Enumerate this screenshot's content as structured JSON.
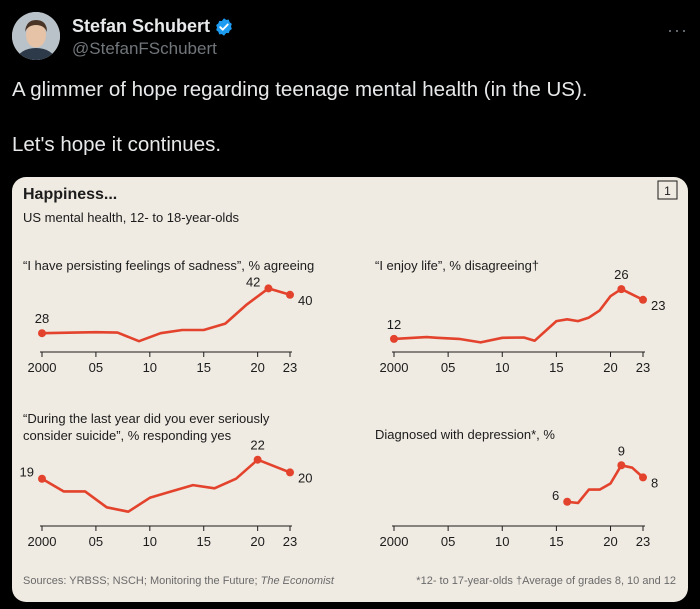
{
  "author": {
    "display_name": "Stefan Schubert",
    "handle": "@StefanFSchubert",
    "more_label": "···"
  },
  "tweet": {
    "line1": "A glimmer of hope regarding teenage mental health (in the US).",
    "line2": "Let's hope it continues."
  },
  "figure": {
    "title": "Happiness...",
    "subtitle": "US mental health, 12- to 18-year-olds",
    "number": "1",
    "sources": "Sources: YRBSS; NSCH; Monitoring the Future; ",
    "sources_italic": "The Economist",
    "footnote": "*12- to 17-year-olds †Average of grades 8, 10 and 12",
    "x_ticks": [
      "2000",
      "05",
      "10",
      "15",
      "20",
      "23"
    ],
    "x_tick_years": [
      2000,
      2005,
      2010,
      2015,
      2020,
      2023
    ],
    "line_color": "#e3432c"
  },
  "chart_data": [
    {
      "type": "line",
      "title": "“I have persisting feelings of sadness”, % agreeing",
      "xlim": [
        2000,
        2023
      ],
      "x": [
        2000,
        2003,
        2005,
        2007,
        2009,
        2011,
        2013,
        2015,
        2017,
        2019,
        2021,
        2023
      ],
      "values": [
        28,
        28.2,
        28.3,
        28.2,
        25.5,
        28,
        29,
        29,
        31,
        37,
        42,
        40
      ],
      "labels": [
        {
          "x": 2000,
          "text": "28",
          "pos": "above"
        },
        {
          "x": 2021,
          "text": "42",
          "pos": "left"
        },
        {
          "x": 2023,
          "text": "40",
          "pos": "right"
        }
      ]
    },
    {
      "type": "line",
      "title": "“I enjoy life”, % disagreeing†",
      "xlim": [
        2000,
        2023
      ],
      "x": [
        2000,
        2003,
        2004,
        2006,
        2008,
        2010,
        2012,
        2013,
        2015,
        2016,
        2017,
        2018,
        2019,
        2020,
        2021,
        2022,
        2023
      ],
      "values": [
        12,
        12.5,
        12.3,
        12,
        11,
        12.3,
        12.4,
        11.5,
        17,
        17.5,
        17,
        18,
        20,
        24,
        26,
        24.5,
        23
      ],
      "labels": [
        {
          "x": 2000,
          "text": "12",
          "pos": "above"
        },
        {
          "x": 2021,
          "text": "26",
          "pos": "above"
        },
        {
          "x": 2023,
          "text": "23",
          "pos": "right"
        }
      ]
    },
    {
      "type": "line",
      "title": "“During the last year did you ever seriously consider suicide”, % responding yes",
      "title_line1": "“During the last year did you ever seriously",
      "title_line2": "consider suicide”, % responding yes",
      "xlim": [
        2000,
        2023
      ],
      "x": [
        2000,
        2002,
        2004,
        2006,
        2008,
        2010,
        2012,
        2014,
        2016,
        2018,
        2020,
        2023
      ],
      "values": [
        19,
        17,
        17,
        14.5,
        13.8,
        16,
        17,
        18,
        17.5,
        19,
        22,
        20
      ],
      "labels": [
        {
          "x": 2000,
          "text": "19",
          "pos": "left"
        },
        {
          "x": 2020,
          "text": "22",
          "pos": "above"
        },
        {
          "x": 2023,
          "text": "20",
          "pos": "right"
        }
      ]
    },
    {
      "type": "line",
      "title": "Diagnosed with depression*, %",
      "xlim": [
        2000,
        2023
      ],
      "x": [
        2016,
        2017,
        2018,
        2019,
        2020,
        2021,
        2022,
        2023
      ],
      "values": [
        6,
        5.9,
        7,
        7,
        7.5,
        9,
        8.8,
        8
      ],
      "labels": [
        {
          "x": 2016,
          "text": "6",
          "pos": "left"
        },
        {
          "x": 2021,
          "text": "9",
          "pos": "above"
        },
        {
          "x": 2023,
          "text": "8",
          "pos": "right"
        }
      ]
    }
  ]
}
